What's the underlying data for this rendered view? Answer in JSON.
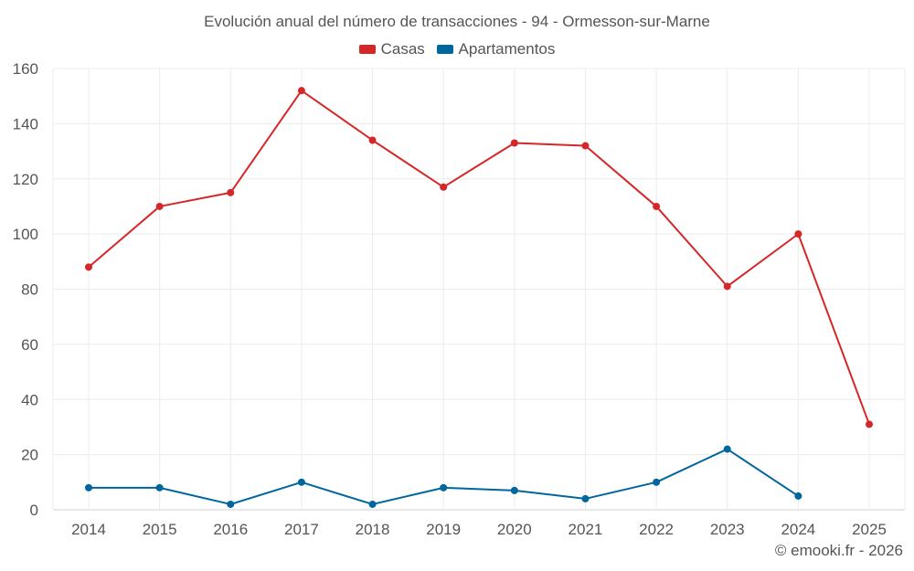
{
  "chart_data": {
    "type": "line",
    "title": "Evolución anual del número de transacciones - 94 - Ormesson-sur-Marne",
    "categories": [
      "2014",
      "2015",
      "2016",
      "2017",
      "2018",
      "2019",
      "2020",
      "2021",
      "2022",
      "2023",
      "2024",
      "2025"
    ],
    "series": [
      {
        "name": "Casas",
        "color": "#d62728",
        "values": [
          88,
          110,
          115,
          152,
          134,
          117,
          133,
          132,
          110,
          81,
          100,
          31
        ]
      },
      {
        "name": "Apartamentos",
        "color": "#00669e",
        "values": [
          8,
          8,
          2,
          10,
          2,
          8,
          7,
          4,
          10,
          22,
          5,
          null
        ]
      }
    ],
    "yticks": [
      0,
      20,
      40,
      60,
      80,
      100,
      120,
      140,
      160
    ],
    "ylim": [
      0,
      160
    ],
    "xlabel": "",
    "ylabel": "",
    "grid": true,
    "legend": "top-center"
  },
  "credit": "© emooki.fr - 2026"
}
